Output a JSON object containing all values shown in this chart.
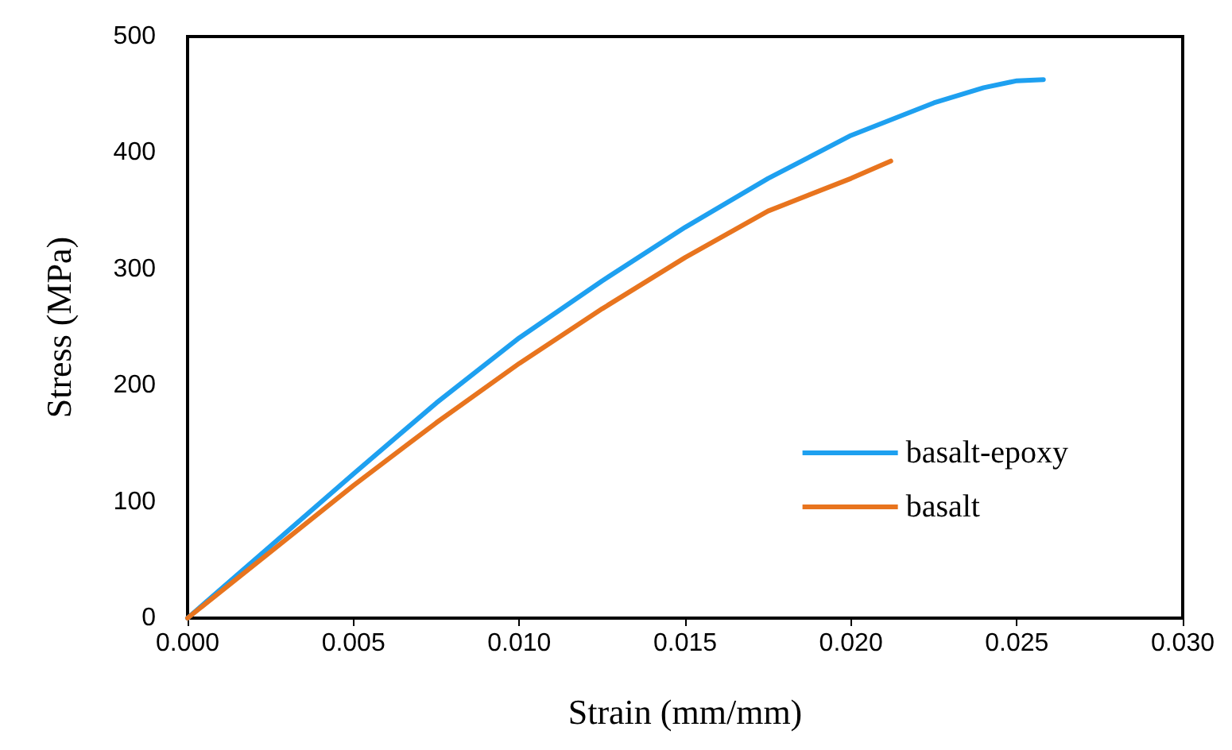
{
  "chart_data": {
    "type": "line",
    "xlabel": "Strain (mm/mm)",
    "ylabel": "Stress (MPa)",
    "xlim": [
      0,
      0.03
    ],
    "xticks": [
      {
        "value": 0,
        "label": "0.000"
      },
      {
        "value": 0.005,
        "label": "0.005"
      },
      {
        "value": 0.01,
        "label": "0.010"
      },
      {
        "value": 0.015,
        "label": "0.015"
      },
      {
        "value": 0.02,
        "label": "0.020"
      },
      {
        "value": 0.025,
        "label": "0.025"
      },
      {
        "value": 0.03,
        "label": "0.030"
      }
    ],
    "ylim": [
      0,
      500
    ],
    "yticks": [
      0,
      100,
      200,
      300,
      400,
      500
    ],
    "grid": false,
    "legend": "bottom right",
    "marker": "none",
    "line_style": "solid",
    "series": [
      {
        "name": "basalt-epoxy",
        "color": "#1ea0f0",
        "x": [
          0,
          0.0025,
          0.005,
          0.0075,
          0.01,
          0.0125,
          0.015,
          0.0175,
          0.02,
          0.0225,
          0.024,
          0.025,
          0.0258
        ],
        "values": [
          0,
          62,
          124,
          185,
          241,
          290,
          336,
          378,
          415,
          443,
          456,
          462,
          463
        ]
      },
      {
        "name": "basalt",
        "color": "#e8741e",
        "x": [
          0,
          0.0025,
          0.005,
          0.0075,
          0.01,
          0.0125,
          0.015,
          0.0175,
          0.02,
          0.0212
        ],
        "values": [
          0,
          57,
          114,
          168,
          219,
          266,
          310,
          350,
          378,
          393
        ]
      }
    ]
  }
}
